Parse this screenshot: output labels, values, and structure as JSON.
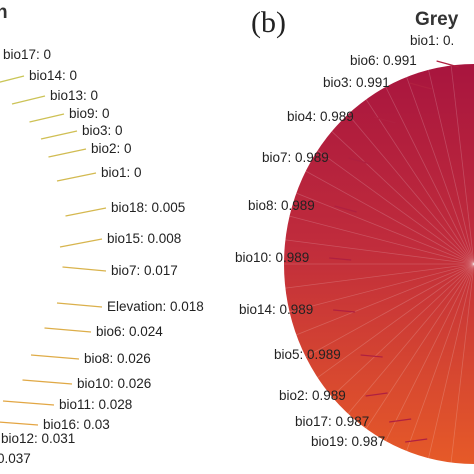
{
  "panel_b_label": "(b)",
  "panel_b_title": "Grey",
  "panel_a_title": "n",
  "chart_data": [
    {
      "type": "pie",
      "title": "",
      "labels": [
        {
          "text": "bio17: 0",
          "variable": "bio17",
          "value": 0
        },
        {
          "text": "bio14: 0",
          "variable": "bio14",
          "value": 0
        },
        {
          "text": "bio13: 0",
          "variable": "bio13",
          "value": 0
        },
        {
          "text": "bio9: 0",
          "variable": "bio9",
          "value": 0
        },
        {
          "text": "bio3: 0",
          "variable": "bio3",
          "value": 0
        },
        {
          "text": "bio2: 0",
          "variable": "bio2",
          "value": 0
        },
        {
          "text": "bio1: 0",
          "variable": "bio1",
          "value": 0
        },
        {
          "text": "bio18: 0.005",
          "variable": "bio18",
          "value": 0.005
        },
        {
          "text": "bio15: 0.008",
          "variable": "bio15",
          "value": 0.008
        },
        {
          "text": "bio7: 0.017",
          "variable": "bio7",
          "value": 0.017
        },
        {
          "text": "Elevation: 0.018",
          "variable": "Elevation",
          "value": 0.018
        },
        {
          "text": "bio6: 0.024",
          "variable": "bio6",
          "value": 0.024
        },
        {
          "text": "bio8: 0.026",
          "variable": "bio8",
          "value": 0.026
        },
        {
          "text": "bio10: 0.026",
          "variable": "bio10",
          "value": 0.026
        },
        {
          "text": "bio11: 0.028",
          "variable": "bio11",
          "value": 0.028
        },
        {
          "text": "bio16: 0.03",
          "variable": "bio16",
          "value": 0.03
        },
        {
          "text": "bio12: 0.031",
          "variable": "bio12",
          "value": 0.031
        },
        {
          "text": "0.037",
          "variable": "",
          "value": 0.037
        }
      ],
      "colors": {
        "leader_low": "#c8c85a",
        "leader_high": "#e8a040"
      }
    },
    {
      "type": "pie",
      "title": "Grey",
      "labels": [
        {
          "text": "bio1: 0.",
          "variable": "bio1",
          "value": null
        },
        {
          "text": "bio6: 0.991",
          "variable": "bio6",
          "value": 0.991
        },
        {
          "text": "bio3: 0.991",
          "variable": "bio3",
          "value": 0.991
        },
        {
          "text": "bio4: 0.989",
          "variable": "bio4",
          "value": 0.989
        },
        {
          "text": "bio7: 0.989",
          "variable": "bio7",
          "value": 0.989
        },
        {
          "text": "bio8: 0.989",
          "variable": "bio8",
          "value": 0.989
        },
        {
          "text": "bio10: 0.989",
          "variable": "bio10",
          "value": 0.989
        },
        {
          "text": "bio14: 0.989",
          "variable": "bio14",
          "value": 0.989
        },
        {
          "text": "bio5: 0.989",
          "variable": "bio5",
          "value": 0.989
        },
        {
          "text": "bio2: 0.989",
          "variable": "bio2",
          "value": 0.989
        },
        {
          "text": "bio17: 0.987",
          "variable": "bio17",
          "value": 0.987
        },
        {
          "text": "bio19: 0.987",
          "variable": "bio19",
          "value": 0.987
        }
      ],
      "colors": {
        "slice_top": "#a8153e",
        "slice_mid": "#c8303a",
        "slice_bottom": "#e2582a",
        "leader": "#b02040"
      }
    }
  ]
}
